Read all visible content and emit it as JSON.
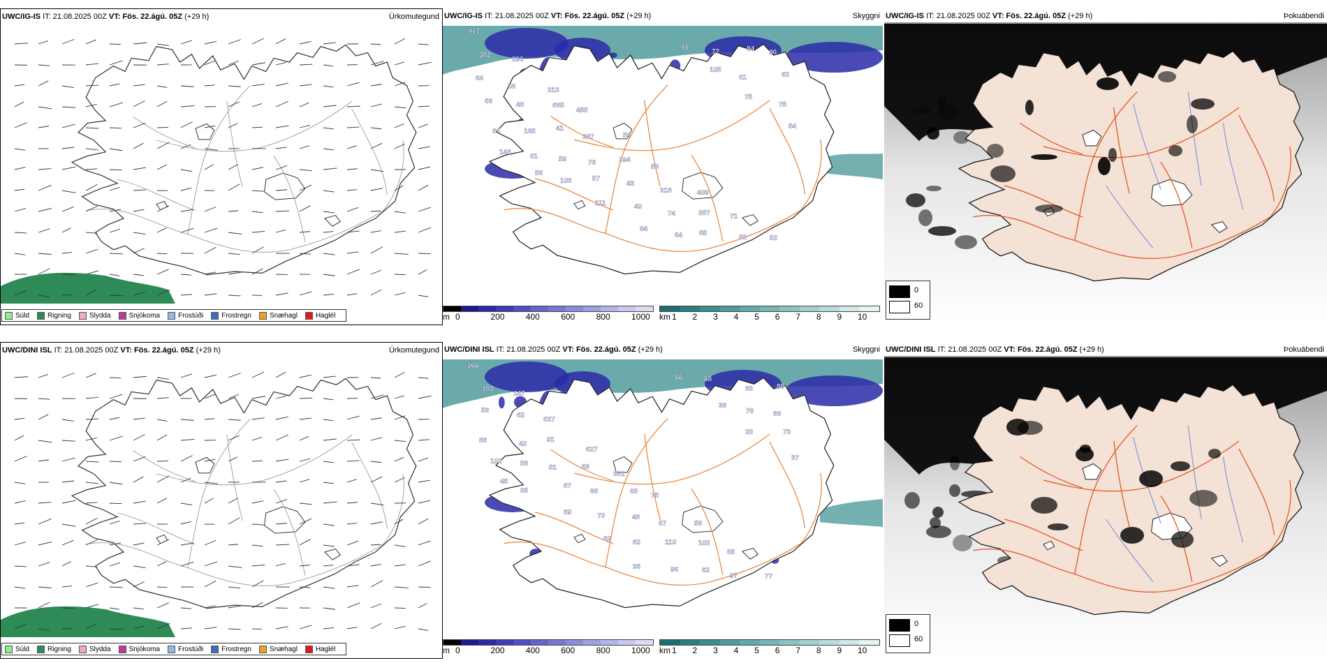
{
  "panels": [
    {
      "model": "UWC/IG-IS",
      "it_label": "IT:",
      "it": "21.08.2025 00Z",
      "vt_label": "VT:",
      "vt": "Fös. 22.ágú. 05Z",
      "lead": "(+29 h)",
      "title": "Úrkomutegund"
    },
    {
      "model": "UWC/IG-IS",
      "it_label": "IT:",
      "it": "21.08.2025 00Z",
      "vt_label": "VT:",
      "vt": "Fös. 22.ágú. 05Z",
      "lead": "(+29 h)",
      "title": "Skyggni"
    },
    {
      "model": "UWC/IG-IS",
      "it_label": "IT:",
      "it": "21.08.2025 00Z",
      "vt_label": "VT:",
      "vt": "Fös. 22.ágú. 05Z",
      "lead": "(+29 h)",
      "title": "Þokuábendi"
    },
    {
      "model": "UWC/DINI ISL",
      "it_label": "IT:",
      "it": "21.08.2025 00Z",
      "vt_label": "VT:",
      "vt": "Fös. 22.ágú. 05Z",
      "lead": "(+29 h)",
      "title": "Úrkomutegund"
    },
    {
      "model": "UWC/DINI ISL",
      "it_label": "IT:",
      "it": "21.08.2025 00Z",
      "vt_label": "VT:",
      "vt": "Fös. 22.ágú. 05Z",
      "lead": "(+29 h)",
      "title": "Skyggni"
    },
    {
      "model": "UWC/DINI ISL",
      "it_label": "IT:",
      "it": "21.08.2025 00Z",
      "vt_label": "VT:",
      "vt": "Fös. 22.ágú. 05Z",
      "lead": "(+29 h)",
      "title": "Þokuábendi"
    }
  ],
  "precip_legend": [
    {
      "label": "Súld",
      "color": "#90ee90"
    },
    {
      "label": "Rigning",
      "color": "#2e8b57"
    },
    {
      "label": "Slydda",
      "color": "#f4a6c8"
    },
    {
      "label": "Snjókoma",
      "color": "#c0399a"
    },
    {
      "label": "Frostúði",
      "color": "#8fbce6"
    },
    {
      "label": "Frostregn",
      "color": "#3a6fc0"
    },
    {
      "label": "Snæhagl",
      "color": "#f0a020"
    },
    {
      "label": "Haglél",
      "color": "#e01818"
    }
  ],
  "vis_m_scale": {
    "unit": "m",
    "ticks": [
      "0",
      "200",
      "400",
      "600",
      "800",
      "1000"
    ],
    "colors": [
      "#000000",
      "#1a1a8c",
      "#2a2aa8",
      "#3c3cb8",
      "#5050c4",
      "#6464cc",
      "#7878d4",
      "#8c8cdc",
      "#a0a0e4",
      "#b4b4ec",
      "#c8c8f0",
      "#dcdcf6"
    ]
  },
  "vis_km_scale": {
    "unit": "km",
    "ticks": [
      "1",
      "2",
      "3",
      "4",
      "5",
      "6",
      "7",
      "8",
      "9",
      "10"
    ],
    "colors": [
      "#1a7070",
      "#2a8080",
      "#3a8e8e",
      "#4c9c9c",
      "#60aaaa",
      "#74b6b6",
      "#8ac4c4",
      "#a0d0d0",
      "#b8dcdc",
      "#d0e8e8",
      "#e8f4f4"
    ]
  },
  "fog_key": [
    {
      "value": "0",
      "color": "#000000"
    },
    {
      "value": "60",
      "color": "#ffffff"
    }
  ],
  "vis_labels_top": [
    "417",
    "296",
    "213",
    "455",
    "59",
    "58",
    "409",
    "71",
    "52",
    "302",
    "58",
    "685",
    "287",
    "294",
    "318",
    "287",
    "82",
    "90",
    "64",
    "48",
    "41",
    "76",
    "43",
    "74",
    "85",
    "84",
    "62",
    "66",
    "165",
    "59",
    "57",
    "40",
    "64",
    "72",
    "61",
    "75",
    "64",
    "61",
    "106",
    "111",
    "84",
    "41",
    "105",
    "75",
    "54",
    "148",
    "56"
  ],
  "vis_labels_bottom": [
    "166",
    "147",
    "637",
    "627",
    "381",
    "75",
    "58",
    "65",
    "77",
    "102",
    "62",
    "91",
    "56",
    "68",
    "67",
    "102",
    "97",
    "80",
    "53",
    "42",
    "51",
    "88",
    "48",
    "110",
    "62",
    "83",
    "68",
    "88",
    "58",
    "87",
    "70",
    "82",
    "96",
    "68",
    "78",
    "73",
    "102",
    "65",
    "69",
    "82",
    "36",
    "66",
    "38",
    "23",
    "37",
    "45"
  ],
  "colors": {
    "land_fog": "#f5e2d6",
    "roads": "#e0521c",
    "roads_mid": "#e8853a",
    "rivers": "#7b8fe0",
    "sea_rain": "#2e8b57",
    "vis_low": "#2a2aa8",
    "vis_km": "#3a8e8e"
  }
}
